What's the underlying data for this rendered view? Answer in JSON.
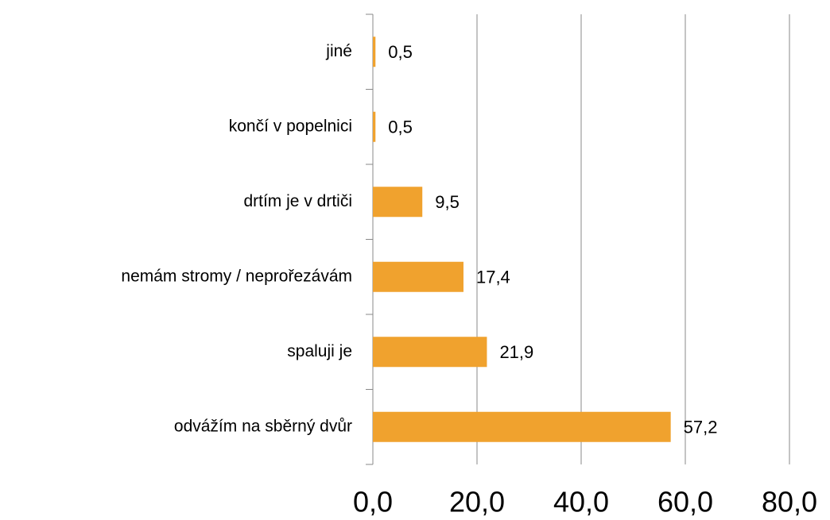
{
  "chart_data": {
    "type": "bar",
    "orientation": "horizontal",
    "categories": [
      "jiné",
      "končí v popelnici",
      "drtím je v drtiči",
      "nemám stromy / neprořezávám",
      "spaluji je",
      "odvážím na sběrný dvůr"
    ],
    "values": [
      0.5,
      0.5,
      9.5,
      17.4,
      21.9,
      57.2
    ],
    "value_labels": [
      "0,5",
      "0,5",
      "9,5",
      "17,4",
      "21,9",
      "57,2"
    ],
    "color": "#f0a22e",
    "xlim": [
      0,
      80
    ],
    "xticks": [
      {
        "value": 0,
        "label": "0,0"
      },
      {
        "value": 20,
        "label": "20,0"
      },
      {
        "value": 40,
        "label": "40,0"
      },
      {
        "value": 60,
        "label": "60,0"
      },
      {
        "value": 80,
        "label": "80,0"
      }
    ],
    "grid": true
  }
}
